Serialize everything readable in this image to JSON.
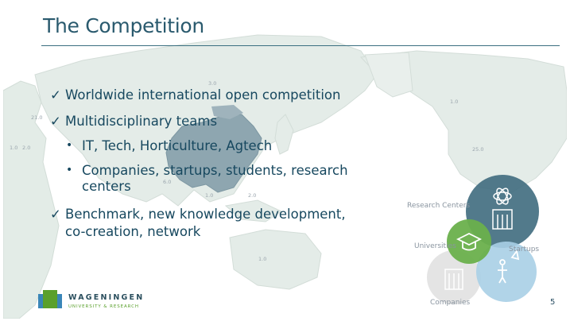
{
  "slide": {
    "title": "The Competition",
    "page_number": "5"
  },
  "bullets": [
    {
      "text": "Worldwide international open competition",
      "level": 1
    },
    {
      "text": "Multidisciplinary teams",
      "level": 1
    },
    {
      "text": "IT, Tech, Horticulture, Agtech",
      "level": 2
    },
    {
      "text": "Companies, startups, students, research",
      "level": 2
    },
    {
      "text": "centers",
      "level": 2
    },
    {
      "text": "Benchmark, new knowledge development,",
      "level": 1
    },
    {
      "text": "co-creation, network",
      "level": 1
    }
  ],
  "bullet_marks": {
    "check": "✓",
    "dot": "•"
  },
  "map_labels": [
    "3.0",
    "1.0",
    "25.0",
    "6.0",
    "2.0",
    "1.0",
    "1.0",
    "2.0",
    "1.0",
    "21.0"
  ],
  "cluster": {
    "labels": [
      "Research Centers",
      "Universities",
      "Startups",
      "Companies"
    ],
    "colors": {
      "research": "#3f6b7e",
      "universities": "#6ab04c",
      "startups": "#a9cfe6",
      "companies": "#e4e4e4"
    },
    "icons": [
      "atom-building-icon",
      "graduation-cap-icon",
      "rocket-person-icon",
      "office-building-icon"
    ]
  },
  "logo": {
    "title": "WAGENINGEN",
    "subtitle": "UNIVERSITY & RESEARCH",
    "colors": {
      "green": "#5aa02c",
      "blue": "#3a86b8"
    }
  },
  "colors": {
    "title": "#2a5a6e",
    "text": "#17485f",
    "map_land": "#e2ebe6",
    "map_highlight": "#8ea6b0"
  }
}
